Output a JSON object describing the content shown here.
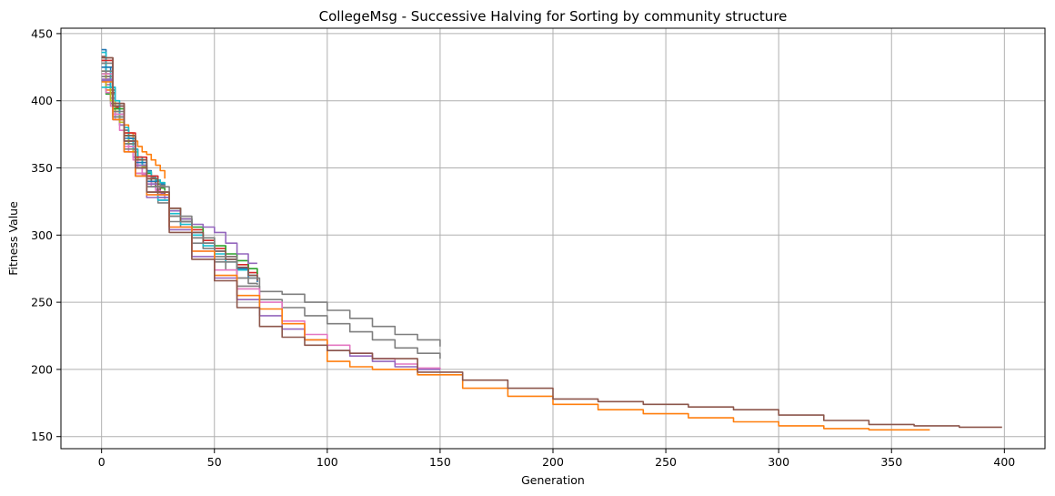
{
  "chart_data": {
    "type": "line",
    "title": "CollegeMsg - Successive Halving for Sorting by community structure",
    "xlabel": "Generation",
    "ylabel": "Fitness Value",
    "xlim": [
      -18,
      418
    ],
    "ylim": [
      141,
      454
    ],
    "xticks": [
      0,
      50,
      100,
      150,
      200,
      250,
      300,
      350,
      400
    ],
    "yticks": [
      150,
      200,
      250,
      300,
      350,
      400,
      450
    ],
    "grid": true,
    "legend": "none",
    "series": [
      {
        "color": "#1f77b4",
        "x": [
          0,
          2,
          4,
          6,
          8,
          10,
          12,
          14,
          16,
          18,
          20,
          22,
          24,
          26,
          28
        ],
        "y": [
          438,
          425,
          410,
          398,
          388,
          378,
          370,
          364,
          358,
          352,
          348,
          344,
          341,
          338,
          336
        ]
      },
      {
        "color": "#ff7f0e",
        "x": [
          0,
          2,
          4,
          6,
          8,
          10,
          12,
          14,
          16,
          18,
          20,
          22,
          24,
          26,
          28
        ],
        "y": [
          422,
          408,
          400,
          396,
          390,
          382,
          376,
          370,
          366,
          362,
          360,
          356,
          352,
          348,
          342
        ]
      },
      {
        "color": "#2ca02c",
        "x": [
          0,
          2,
          4,
          6,
          8,
          10,
          12,
          14,
          16,
          18,
          20,
          22,
          24,
          26,
          28
        ],
        "y": [
          415,
          405,
          398,
          390,
          382,
          374,
          368,
          362,
          356,
          351,
          346,
          342,
          338,
          335,
          333
        ]
      },
      {
        "color": "#d62728",
        "x": [
          0,
          2,
          4,
          6,
          8,
          10,
          12,
          14,
          16,
          18,
          20,
          22,
          24,
          26,
          28
        ],
        "y": [
          430,
          418,
          406,
          395,
          386,
          378,
          370,
          362,
          356,
          350,
          344,
          340,
          336,
          332,
          330
        ]
      },
      {
        "color": "#9467bd",
        "x": [
          0,
          2,
          4,
          6,
          8,
          10,
          12,
          14,
          16,
          18,
          20,
          22,
          24,
          26,
          28
        ],
        "y": [
          425,
          412,
          402,
          392,
          382,
          374,
          366,
          358,
          352,
          346,
          342,
          338,
          334,
          331,
          329
        ]
      },
      {
        "color": "#8c564b",
        "x": [
          0,
          2,
          4,
          6,
          8,
          10,
          12,
          14,
          16,
          18,
          20,
          22,
          24,
          26,
          28
        ],
        "y": [
          433,
          420,
          408,
          398,
          388,
          378,
          372,
          364,
          356,
          350,
          344,
          340,
          336,
          332,
          327
        ]
      },
      {
        "color": "#e377c2",
        "x": [
          0,
          2,
          4,
          6,
          8,
          10,
          12,
          14,
          16,
          18,
          20,
          22,
          24,
          26,
          28
        ],
        "y": [
          418,
          406,
          396,
          386,
          378,
          370,
          362,
          356,
          350,
          345,
          340,
          336,
          333,
          330,
          328
        ]
      },
      {
        "color": "#7f7f7f",
        "x": [
          0,
          2,
          4,
          6,
          8,
          10,
          12,
          14,
          16,
          18,
          20,
          22,
          24,
          26,
          28
        ],
        "y": [
          428,
          416,
          405,
          396,
          386,
          378,
          370,
          364,
          358,
          352,
          347,
          343,
          340,
          337,
          335
        ]
      },
      {
        "color": "#bcbd22",
        "x": [
          0,
          2,
          4,
          6,
          8,
          10,
          12,
          14,
          16,
          18,
          20,
          22,
          24,
          26,
          28
        ],
        "y": [
          420,
          410,
          400,
          392,
          384,
          376,
          368,
          362,
          356,
          351,
          347,
          344,
          341,
          339,
          338
        ]
      },
      {
        "color": "#17becf",
        "x": [
          0,
          2,
          4,
          6,
          8,
          10,
          12,
          14,
          16,
          18,
          20,
          22,
          24,
          26,
          28
        ],
        "y": [
          436,
          422,
          410,
          400,
          390,
          380,
          372,
          364,
          358,
          352,
          347,
          344,
          341,
          339,
          338
        ]
      },
      {
        "color": "#d62728",
        "x": [
          0,
          5,
          10,
          15,
          20,
          25,
          30,
          35,
          40,
          45,
          50,
          55,
          60,
          65,
          69
        ],
        "y": [
          430,
          398,
          376,
          358,
          344,
          332,
          320,
          312,
          304,
          296,
          290,
          284,
          278,
          272,
          268
        ]
      },
      {
        "color": "#1f77b4",
        "x": [
          0,
          5,
          10,
          15,
          20,
          25,
          30,
          35,
          40,
          45,
          50,
          55,
          60,
          65,
          69
        ],
        "y": [
          425,
          396,
          372,
          354,
          340,
          328,
          318,
          310,
          302,
          294,
          288,
          282,
          275,
          268,
          265
        ]
      },
      {
        "color": "#2ca02c",
        "x": [
          0,
          5,
          10,
          15,
          20,
          25,
          30,
          35,
          40,
          45,
          50,
          55,
          60,
          65,
          69
        ],
        "y": [
          420,
          394,
          374,
          356,
          342,
          330,
          320,
          312,
          306,
          298,
          292,
          286,
          281,
          275,
          271
        ]
      },
      {
        "color": "#9467bd",
        "x": [
          0,
          5,
          10,
          15,
          20,
          25,
          30,
          35,
          40,
          45,
          50,
          55,
          60,
          65,
          69
        ],
        "y": [
          415,
          390,
          370,
          352,
          338,
          326,
          318,
          312,
          308,
          306,
          302,
          294,
          286,
          279,
          279
        ]
      },
      {
        "color": "#7f7f7f",
        "x": [
          0,
          5,
          10,
          15,
          20,
          25,
          30,
          35,
          40,
          45,
          50,
          55,
          60,
          65,
          69
        ],
        "y": [
          428,
          396,
          370,
          350,
          336,
          324,
          314,
          306,
          298,
          290,
          282,
          274,
          268,
          264,
          263
        ]
      },
      {
        "color": "#17becf",
        "x": [
          0,
          5,
          10,
          15,
          20,
          25,
          30,
          35,
          40,
          45,
          50,
          55,
          60,
          65,
          69
        ],
        "y": [
          410,
          388,
          368,
          350,
          336,
          326,
          316,
          308,
          300,
          292,
          286,
          280,
          274,
          270,
          268
        ]
      },
      {
        "color": "#8c564b",
        "x": [
          0,
          5,
          10,
          15,
          20,
          25,
          30,
          35,
          40,
          45,
          50,
          55,
          60,
          65,
          69
        ],
        "y": [
          432,
          398,
          374,
          356,
          342,
          330,
          320,
          310,
          302,
          294,
          288,
          282,
          276,
          270,
          266
        ]
      },
      {
        "color": "#7f7f7f",
        "x": [
          0,
          5,
          10,
          15,
          20,
          30,
          40,
          50,
          60,
          70,
          80,
          90,
          100,
          110,
          120,
          130,
          140,
          150
        ],
        "y": [
          422,
          392,
          368,
          350,
          336,
          314,
          298,
          284,
          268,
          258,
          256,
          250,
          244,
          238,
          232,
          226,
          222,
          217
        ]
      },
      {
        "color": "#7f7f7f",
        "x": [
          0,
          5,
          10,
          15,
          20,
          30,
          40,
          50,
          60,
          70,
          80,
          90,
          100,
          110,
          120,
          130,
          140,
          150
        ],
        "y": [
          418,
          388,
          364,
          346,
          332,
          310,
          294,
          280,
          262,
          252,
          246,
          240,
          234,
          228,
          222,
          216,
          212,
          208
        ]
      },
      {
        "color": "#e377c2",
        "x": [
          0,
          5,
          10,
          15,
          20,
          30,
          40,
          50,
          60,
          70,
          80,
          90,
          100,
          110,
          120,
          130,
          140,
          150
        ],
        "y": [
          420,
          390,
          366,
          346,
          330,
          306,
          288,
          274,
          260,
          250,
          236,
          226,
          218,
          212,
          208,
          204,
          201,
          200
        ]
      },
      {
        "color": "#9467bd",
        "x": [
          0,
          5,
          10,
          15,
          20,
          30,
          40,
          50,
          60,
          70,
          80,
          90,
          100,
          110,
          120,
          130,
          140,
          150
        ],
        "y": [
          416,
          386,
          362,
          344,
          328,
          304,
          284,
          268,
          252,
          240,
          230,
          222,
          214,
          210,
          206,
          202,
          200,
          200
        ]
      },
      {
        "color": "#ff7f0e",
        "x": [
          0,
          5,
          10,
          15,
          20,
          30,
          40,
          50,
          60,
          70,
          80,
          90,
          100,
          110,
          120,
          140,
          160,
          180,
          200,
          220,
          240,
          260,
          280,
          300,
          320,
          340,
          367
        ],
        "y": [
          414,
          386,
          362,
          344,
          330,
          306,
          288,
          270,
          255,
          245,
          234,
          222,
          206,
          202,
          200,
          196,
          186,
          180,
          174,
          170,
          167,
          164,
          161,
          158,
          156,
          155,
          155
        ]
      },
      {
        "color": "#8c564b",
        "x": [
          0,
          5,
          10,
          15,
          20,
          30,
          40,
          50,
          60,
          70,
          80,
          90,
          100,
          110,
          120,
          140,
          160,
          180,
          200,
          220,
          240,
          260,
          280,
          300,
          320,
          340,
          360,
          380,
          399
        ],
        "y": [
          432,
          396,
          370,
          350,
          332,
          302,
          282,
          266,
          246,
          232,
          224,
          218,
          214,
          212,
          208,
          198,
          192,
          186,
          178,
          176,
          174,
          172,
          170,
          166,
          162,
          159,
          158,
          157,
          157
        ]
      }
    ]
  }
}
